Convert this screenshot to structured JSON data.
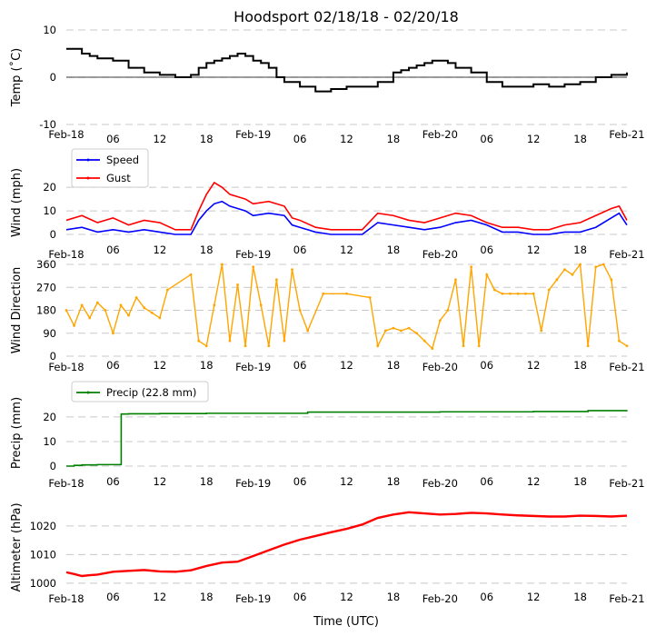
{
  "title": "Hoodsport 02/18/18 - 02/20/18",
  "xaxis_label": "Time (UTC)",
  "time_ticks": [
    "Feb-18",
    "06",
    "12",
    "18",
    "Feb-19",
    "06",
    "12",
    "18",
    "Feb-20",
    "06",
    "12",
    "18",
    "Feb-21"
  ],
  "chart_data": [
    {
      "type": "line",
      "name": "temperature",
      "ylabel": "Temp ($^\\circ$C)",
      "ylabel_display": "Temp (˚C)",
      "ylim": [
        -10,
        10
      ],
      "yticks": [
        -10,
        0,
        10
      ],
      "grid": true,
      "zero_line": true,
      "color": "#000000",
      "x_hours": [
        0,
        2,
        3,
        4,
        6,
        8,
        10,
        12,
        14,
        16,
        17,
        18,
        19,
        20,
        21,
        22,
        23,
        24,
        25,
        26,
        27,
        28,
        30,
        32,
        34,
        36,
        38,
        40,
        42,
        43,
        44,
        45,
        46,
        47,
        48,
        49,
        50,
        52,
        54,
        56,
        58,
        60,
        62,
        64,
        66,
        68,
        70,
        72
      ],
      "y_values": [
        6,
        5,
        4.5,
        4,
        3.5,
        2,
        1,
        0.5,
        0,
        0.5,
        2,
        3,
        3.5,
        4,
        4.5,
        5,
        4.5,
        3.5,
        3,
        2,
        0,
        -1,
        -2,
        -3,
        -2.5,
        -2,
        -2,
        -1,
        1,
        1.5,
        2,
        2.5,
        3,
        3.5,
        3.5,
        3,
        2,
        1,
        -1,
        -2,
        -2,
        -1.5,
        -2,
        -1.5,
        -1,
        0,
        0.5,
        1
      ]
    },
    {
      "type": "line",
      "name": "wind-speed",
      "ylabel": "Wind (mph)",
      "ylim": [
        0,
        27
      ],
      "yticks": [
        0,
        10,
        20
      ],
      "grid": true,
      "legend_location": "top-left",
      "series": [
        {
          "name": "Speed",
          "color": "#0000ff",
          "x_hours": [
            0,
            2,
            4,
            6,
            8,
            10,
            12,
            14,
            16,
            17,
            18,
            19,
            20,
            21,
            22,
            23,
            24,
            26,
            28,
            29,
            30,
            32,
            34,
            36,
            38,
            40,
            42,
            44,
            46,
            48,
            50,
            52,
            54,
            56,
            58,
            60,
            62,
            64,
            66,
            68,
            70,
            71,
            72
          ],
          "values": [
            2,
            3,
            1,
            2,
            1,
            2,
            1,
            0,
            0,
            6,
            10,
            13,
            14,
            12,
            11,
            10,
            8,
            9,
            8,
            4,
            3,
            1,
            0,
            0,
            0,
            5,
            4,
            3,
            2,
            3,
            5,
            6,
            4,
            1,
            1,
            0,
            0,
            1,
            1,
            3,
            7,
            9,
            4
          ]
        },
        {
          "name": "Gust",
          "color": "#ff0000",
          "x_hours": [
            0,
            2,
            4,
            6,
            8,
            10,
            12,
            14,
            16,
            17,
            18,
            19,
            20,
            21,
            22,
            23,
            24,
            26,
            28,
            29,
            30,
            32,
            34,
            36,
            38,
            40,
            42,
            44,
            46,
            48,
            50,
            52,
            54,
            56,
            58,
            60,
            62,
            64,
            66,
            68,
            70,
            71,
            72
          ],
          "values": [
            6,
            8,
            5,
            7,
            4,
            6,
            5,
            2,
            2,
            10,
            17,
            22,
            20,
            17,
            16,
            15,
            13,
            14,
            12,
            7,
            6,
            3,
            2,
            2,
            2,
            9,
            8,
            6,
            5,
            7,
            9,
            8,
            5,
            3,
            3,
            2,
            2,
            4,
            5,
            8,
            11,
            12,
            6
          ]
        }
      ]
    },
    {
      "type": "scatter",
      "name": "wind-direction",
      "ylabel": "Wind Direction",
      "ylim": [
        0,
        360
      ],
      "yticks": [
        0,
        90,
        180,
        270,
        360
      ],
      "grid": true,
      "color": "#ffa500",
      "x_hours": [
        0,
        1,
        2,
        3,
        4,
        5,
        6,
        7,
        8,
        9,
        10,
        11,
        12,
        13,
        16,
        17,
        18,
        19,
        20,
        21,
        22,
        23,
        24,
        25,
        26,
        27,
        28,
        29,
        30,
        31,
        33,
        36,
        39,
        40,
        41,
        42,
        43,
        44,
        45,
        46,
        47,
        48,
        49,
        50,
        51,
        52,
        53,
        54,
        55,
        56,
        57,
        58,
        59,
        60,
        61,
        62,
        63,
        64,
        65,
        66,
        67,
        68,
        69,
        70,
        71,
        72
      ],
      "values": [
        180,
        120,
        200,
        150,
        210,
        180,
        90,
        200,
        160,
        230,
        190,
        170,
        150,
        260,
        320,
        60,
        40,
        200,
        360,
        60,
        280,
        40,
        350,
        200,
        40,
        300,
        60,
        340,
        180,
        100,
        245,
        245,
        230,
        40,
        100,
        110,
        100,
        110,
        90,
        60,
        30,
        140,
        180,
        300,
        40,
        350,
        40,
        320,
        260,
        245,
        245,
        245,
        245,
        245,
        100,
        260,
        300,
        340,
        320,
        360,
        40,
        350,
        360,
        300,
        60,
        40
      ]
    },
    {
      "type": "line",
      "name": "precipitation",
      "ylabel": "Precip (mm)",
      "ylim": [
        0,
        27
      ],
      "yticks": [
        0,
        10,
        20
      ],
      "grid": true,
      "legend_location": "top-left",
      "series": [
        {
          "name": "Precip (22.8 mm)",
          "color": "#008000",
          "x_hours": [
            0,
            1,
            2,
            4,
            6,
            7,
            7.05,
            8,
            12,
            18,
            24,
            30,
            31,
            36,
            42,
            48,
            54,
            60,
            66,
            67,
            72
          ],
          "values": [
            0,
            0.3,
            0.5,
            0.6,
            0.6,
            0.6,
            21.2,
            21.3,
            21.4,
            21.5,
            21.5,
            21.5,
            22.0,
            22.0,
            22.0,
            22.1,
            22.1,
            22.2,
            22.2,
            22.6,
            22.8
          ]
        }
      ]
    },
    {
      "type": "line",
      "name": "altimeter",
      "ylabel": "Altimeter (hPa)",
      "ylim": [
        999,
        1026
      ],
      "yticks": [
        1000,
        1010,
        1020
      ],
      "grid": true,
      "color": "#ff0000",
      "x_hours": [
        0,
        1,
        2,
        3,
        4,
        6,
        8,
        10,
        12,
        14,
        16,
        18,
        20,
        22,
        24,
        26,
        28,
        30,
        32,
        34,
        36,
        38,
        40,
        42,
        44,
        46,
        48,
        50,
        52,
        54,
        56,
        58,
        60,
        62,
        64,
        66,
        68,
        70,
        72
      ],
      "values": [
        1003.8,
        1003.2,
        1002.5,
        1002.8,
        1003.0,
        1004.0,
        1004.3,
        1004.6,
        1004.1,
        1004.0,
        1004.5,
        1006.0,
        1007.2,
        1007.5,
        1009.5,
        1011.5,
        1013.5,
        1015.2,
        1016.5,
        1017.8,
        1019.0,
        1020.5,
        1022.8,
        1024.0,
        1024.8,
        1024.4,
        1024.0,
        1024.2,
        1024.6,
        1024.4,
        1024.0,
        1023.7,
        1023.5,
        1023.3,
        1023.3,
        1023.6,
        1023.5,
        1023.3,
        1023.6
      ]
    }
  ]
}
